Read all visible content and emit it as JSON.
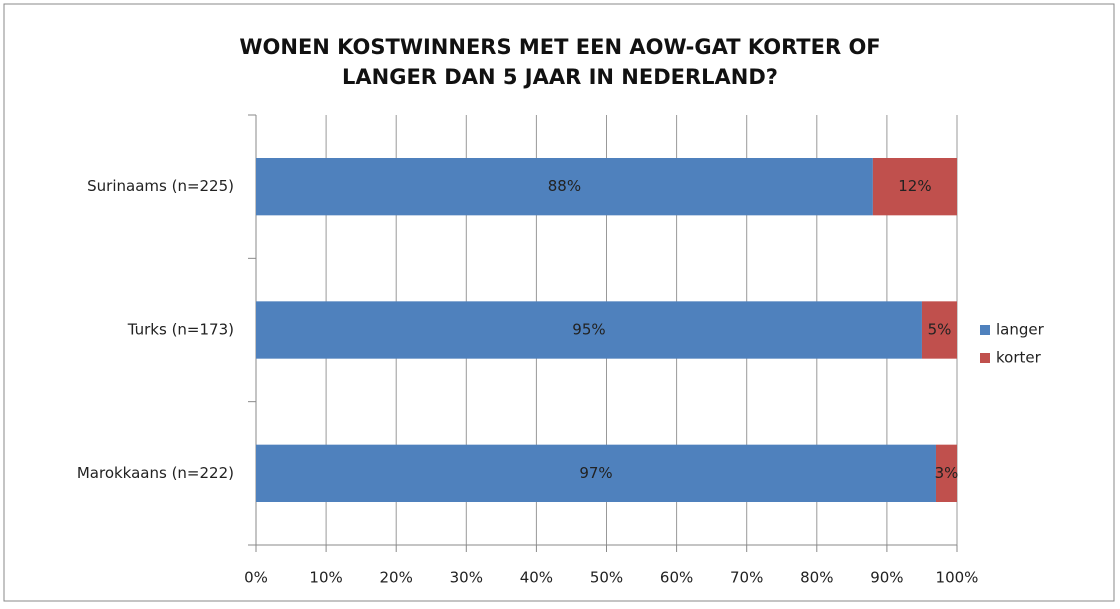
{
  "chart_data": {
    "type": "stacked_barh",
    "title": [
      "WONEN KOSTWINNERS MET EEN AOW-GAT KORTER OF",
      "LANGER DAN 5 JAAR IN NEDERLAND?"
    ],
    "categories": [
      "Surinaams (n=225)",
      "Turks (n=173)",
      "Marokkaans (n=222)"
    ],
    "series": [
      {
        "name": "langer",
        "color": "#4f81bd",
        "values": [
          88,
          95,
          97
        ],
        "value_labels": [
          "88%",
          "95%",
          "97%"
        ]
      },
      {
        "name": "korter",
        "color": "#c0504d",
        "values": [
          12,
          5,
          3
        ],
        "value_labels": [
          "12%",
          "5%",
          "3%"
        ]
      }
    ],
    "xlim": [
      0,
      100
    ],
    "xticks": [
      {
        "value": 0,
        "label": "0%"
      },
      {
        "value": 10,
        "label": "10%"
      },
      {
        "value": 20,
        "label": "20%"
      },
      {
        "value": 30,
        "label": "30%"
      },
      {
        "value": 40,
        "label": "40%"
      },
      {
        "value": 50,
        "label": "50%"
      },
      {
        "value": 60,
        "label": "60%"
      },
      {
        "value": 70,
        "label": "70%"
      },
      {
        "value": 80,
        "label": "80%"
      },
      {
        "value": 90,
        "label": "90%"
      },
      {
        "value": 100,
        "label": "100%"
      }
    ],
    "grid": true,
    "legend": "right"
  }
}
